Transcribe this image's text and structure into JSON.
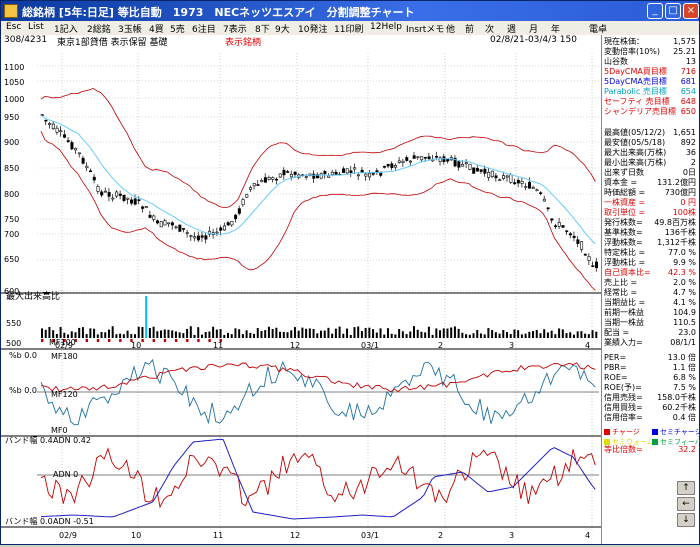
{
  "window": {
    "title": "総銘柄 [5年:日足] 等比自動　1973　NECネッツエスアイ　分割調整チャート"
  },
  "menu": [
    "Esc",
    "List",
    "1記入",
    "2総銘",
    "3玉帳",
    "4買",
    "5売",
    "6注目",
    "7表示",
    "8下",
    "9大",
    "10発注",
    "11印刷",
    "12Help",
    "Insrtメモ",
    "他",
    "前",
    "次",
    "週",
    "月",
    "年",
    "電卓"
  ],
  "infobar": {
    "position": "308/4231",
    "market": "東京1部貸借 表示保留 基礎",
    "display_label": "表示銘柄",
    "date_range": "02/8/21-03/4/3 150"
  },
  "price_axis": {
    "ticks": [
      1100,
      1050,
      1000,
      950,
      900,
      850,
      800,
      750,
      700,
      650,
      600
    ],
    "volume_label": "最大出来高比",
    "volume_ticks": [
      550,
      500
    ]
  },
  "x_axis_top": [
    "02/9",
    "10",
    "11",
    "12",
    "03/1",
    "2",
    "3",
    "4"
  ],
  "x_axis_bottom": [
    "02/9",
    "10",
    "11",
    "12",
    "03/1",
    "2",
    "3",
    "4"
  ],
  "indicator_labels": {
    "mf100": "MF100",
    "mf180": "MF180",
    "mf120": "MF120",
    "mf0": "MF0",
    "pb0_top": "%b 0.0",
    "pb0_mid": "%b 0.0",
    "band_top_left": "バンド幅 0.4",
    "adn_top": "ADN 0.42",
    "adn_mid": "ADN 0",
    "band_bottom_left": "バンド幅 0.0",
    "adn_bottom": "ADN -0.51"
  },
  "panel": {
    "rows1": [
      {
        "label": "現在株価：",
        "value": "1,575",
        "color": "#000000"
      },
      {
        "label": "変動倍率(10%)",
        "value": "25.21",
        "color": "#000000"
      },
      {
        "label": "山谷数",
        "value": "13",
        "color": "#000000"
      },
      {
        "label": "5DayCMA買目標",
        "value": "716",
        "color": "#e00000"
      },
      {
        "label": "5DayCMA売目標",
        "value": "681",
        "color": "#0000e0"
      },
      {
        "label": "Parabolic 売目標",
        "value": "654",
        "color": "#00a0c0"
      },
      {
        "label": "セーフティ 売目標",
        "value": "648",
        "color": "#e00000"
      },
      {
        "label": "シャンデリア売目標",
        "value": "650",
        "color": "#e00000"
      }
    ],
    "rows2": [
      {
        "label": "最高値(05/12/2)",
        "value": "1,651"
      },
      {
        "label": "最安値(05/5/18)",
        "value": "892"
      },
      {
        "label": "最大出来高(万株)",
        "value": "36"
      },
      {
        "label": "最小出来高(万株)",
        "value": "2"
      },
      {
        "label": "出来ず日数",
        "value": "0日"
      },
      {
        "label": "資本金 =",
        "value": "131.2億円"
      },
      {
        "label": "時価総額 =",
        "value": "730億円"
      },
      {
        "label": "一株資産 =",
        "value": "0 円"
      },
      {
        "label": "取引単位 =",
        "value": "100株"
      },
      {
        "label": "発行株数=",
        "value": "49.8百万株"
      },
      {
        "label": "基準株数=",
        "value": "136千株"
      },
      {
        "label": "浮動株数=",
        "value": "1,312千株"
      },
      {
        "label": "特定株比 =",
        "value": "77.0 %"
      },
      {
        "label": "浮動株比 =",
        "value": "9.9 %"
      },
      {
        "label": "自己資本比=",
        "value": "42.3 %"
      },
      {
        "label": "売上比 =",
        "value": "2.0 %"
      },
      {
        "label": "経常比 =",
        "value": "4.7 %"
      },
      {
        "label": "当期益比 =",
        "value": "4.1 %"
      },
      {
        "label": "前期一株益",
        "value": "104.9"
      },
      {
        "label": "当期一株益",
        "value": "110.5"
      },
      {
        "label": "配当 =",
        "value": "23.0"
      },
      {
        "label": "業績入力=",
        "value": "08/1/1"
      }
    ],
    "rows3": [
      {
        "label": "PER=",
        "value": "13.0 倍"
      },
      {
        "label": "PBR=",
        "value": "1.1 倍"
      },
      {
        "label": "ROE=",
        "value": "6.8 %"
      },
      {
        "label": "ROE(予)=",
        "value": "7.5 %"
      },
      {
        "label": "信用売残=",
        "value": "158.0千株"
      },
      {
        "label": "信用買残=",
        "value": "60.2千株"
      },
      {
        "label": "信用倍率=",
        "value": "0.4 倍"
      }
    ],
    "legend": [
      {
        "label": "チャージ",
        "color": "#e00000"
      },
      {
        "label": "セミチャージ",
        "color": "#0000e0"
      },
      {
        "label": "セミウォーム",
        "color": "#e0e000"
      },
      {
        "label": "セミフィーバー",
        "color": "#00a040"
      }
    ],
    "ratio": {
      "label": "等比倍数=",
      "value": "32.2"
    },
    "nav": [
      "↑",
      "←",
      "↓"
    ]
  },
  "colors": {
    "band": "#c00000",
    "ma": "#66ccff",
    "grid": "#b0b0b0",
    "mf_line_blue": "#2070a0",
    "mf_line_red": "#c00000",
    "adn_blue": "#2020c0",
    "adn_red": "#c00000"
  }
}
